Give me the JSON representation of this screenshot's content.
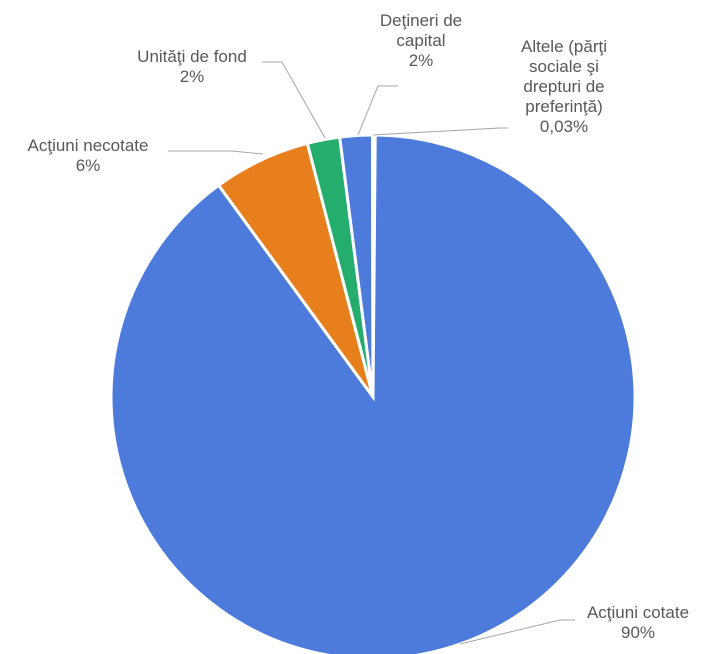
{
  "chart_data": {
    "type": "pie",
    "slices": [
      {
        "label": "Acţiuni cotate",
        "value": 90,
        "display": "90%",
        "color": "#4c7bdc"
      },
      {
        "label": "Acţiuni necotate",
        "value": 6,
        "display": "6%",
        "color": "#e77f1c"
      },
      {
        "label": "Unităţi de fond",
        "value": 2,
        "display": "2%",
        "color": "#24ad6d"
      },
      {
        "label": "Deţineri de capital",
        "value": 2,
        "display": "2%",
        "color": "#4c7bdc"
      },
      {
        "label": "Altele (părţi sociale şi drepturi de preferinţă)",
        "value": 0.03,
        "display": "0,03%",
        "color": "#9e9e9e"
      }
    ]
  },
  "labels": [
    {
      "lines": [
        "Acţiuni cotate",
        "90%"
      ]
    },
    {
      "lines": [
        "Acţiuni necotate",
        "6%"
      ]
    },
    {
      "lines": [
        "Unităţi de fond",
        "2%"
      ]
    },
    {
      "lines": [
        "Deţineri de",
        "capital",
        "2%"
      ]
    },
    {
      "lines": [
        "Altele (părţi",
        "sociale şi",
        "drepturi de",
        "preferinţă)",
        "0,03%"
      ]
    }
  ]
}
